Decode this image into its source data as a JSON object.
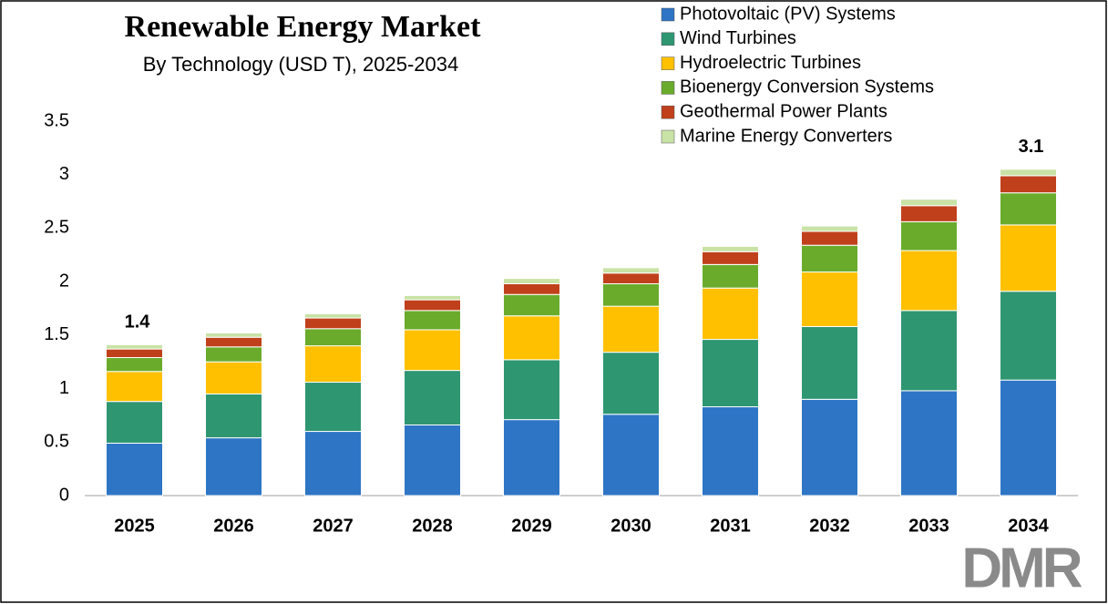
{
  "chart_data": {
    "type": "stacked_bar",
    "title": "Renewable Energy Market",
    "subtitle": "By Technology (USD T), 2025-2034",
    "categories": [
      "2025",
      "2026",
      "2027",
      "2028",
      "2029",
      "2030",
      "2031",
      "2032",
      "2033",
      "2034"
    ],
    "series": [
      {
        "name": "Photovoltaic (PV) Systems",
        "color": "#2e75c5",
        "values": [
          0.49,
          0.54,
          0.6,
          0.66,
          0.71,
          0.76,
          0.83,
          0.9,
          0.98,
          1.08
        ]
      },
      {
        "name": "Wind Turbines",
        "color": "#2f9672",
        "values": [
          0.39,
          0.41,
          0.46,
          0.51,
          0.56,
          0.58,
          0.63,
          0.68,
          0.75,
          0.83
        ]
      },
      {
        "name": "Hydroelectric Turbines",
        "color": "#ffc000",
        "values": [
          0.28,
          0.3,
          0.34,
          0.38,
          0.41,
          0.43,
          0.48,
          0.51,
          0.56,
          0.62
        ]
      },
      {
        "name": "Bioenergy Conversion Systems",
        "color": "#6aab2c",
        "values": [
          0.13,
          0.14,
          0.16,
          0.18,
          0.2,
          0.21,
          0.22,
          0.25,
          0.27,
          0.3
        ]
      },
      {
        "name": "Geothermal Power Plants",
        "color": "#c0401c",
        "values": [
          0.08,
          0.09,
          0.1,
          0.1,
          0.1,
          0.1,
          0.12,
          0.13,
          0.15,
          0.16
        ]
      },
      {
        "name": "Marine Energy Converters",
        "color": "#c9e2a6",
        "values": [
          0.04,
          0.04,
          0.04,
          0.04,
          0.05,
          0.05,
          0.05,
          0.05,
          0.06,
          0.06
        ]
      }
    ],
    "total_labels": [
      1.4,
      null,
      null,
      null,
      null,
      null,
      null,
      null,
      null,
      3.1
    ],
    "ylim": [
      0,
      3.5
    ],
    "yticks": [
      0,
      0.5,
      1,
      1.5,
      2,
      2.5,
      3,
      3.5
    ],
    "grid": false,
    "legend": "top-right",
    "logo": "DMR"
  }
}
